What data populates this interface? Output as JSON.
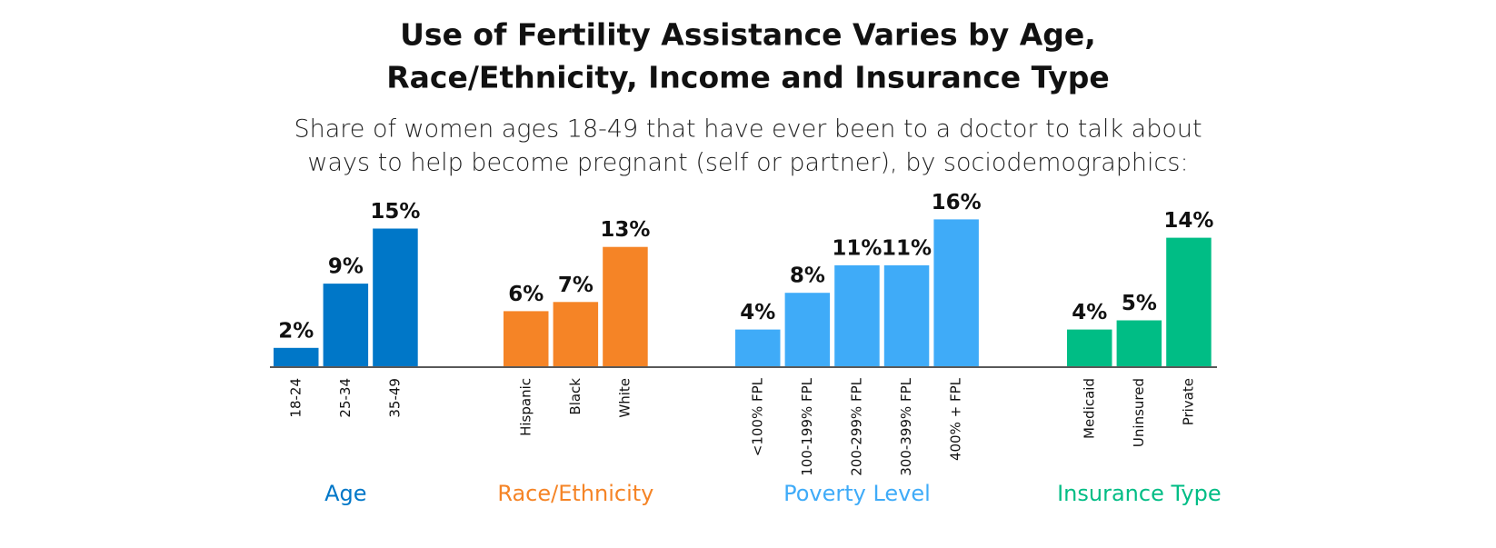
{
  "chart_data": {
    "type": "bar",
    "title": [
      "Use of Fertility Assistance Varies by Age,",
      "Race/Ethnicity, Income and Insurance Type"
    ],
    "subtitle": [
      "Share of women ages 18-49 that have ever been to a doctor to talk about",
      "ways to help become pregnant (self or partner), by sociodemographics:"
    ],
    "groups": [
      {
        "name": "Age",
        "color": "#0077c8",
        "categories": [
          "18-24",
          "25-34",
          "35-49"
        ],
        "values": [
          2,
          9,
          15
        ],
        "value_labels": [
          "2%",
          "9%",
          "15%"
        ]
      },
      {
        "name": "Race/Ethnicity",
        "color": "#f58426",
        "categories": [
          "Hispanic",
          "Black",
          "White"
        ],
        "values": [
          6,
          7,
          13
        ],
        "value_labels": [
          "6%",
          "7%",
          "13%"
        ]
      },
      {
        "name": "Poverty Level",
        "color": "#3fabf8",
        "categories": [
          "<100% FPL",
          "100-199% FPL",
          "200-299% FPL",
          "300-399% FPL",
          "400% + FPL"
        ],
        "values": [
          4,
          8,
          11,
          11,
          16
        ],
        "value_labels": [
          "4%",
          "8%",
          "11%",
          "11%",
          "16%"
        ]
      },
      {
        "name": "Insurance Type",
        "color": "#00bd85",
        "categories": [
          "Medicaid",
          "Uninsured",
          "Private"
        ],
        "values": [
          4,
          5,
          14
        ],
        "value_labels": [
          "4%",
          "5%",
          "14%"
        ]
      }
    ]
  }
}
